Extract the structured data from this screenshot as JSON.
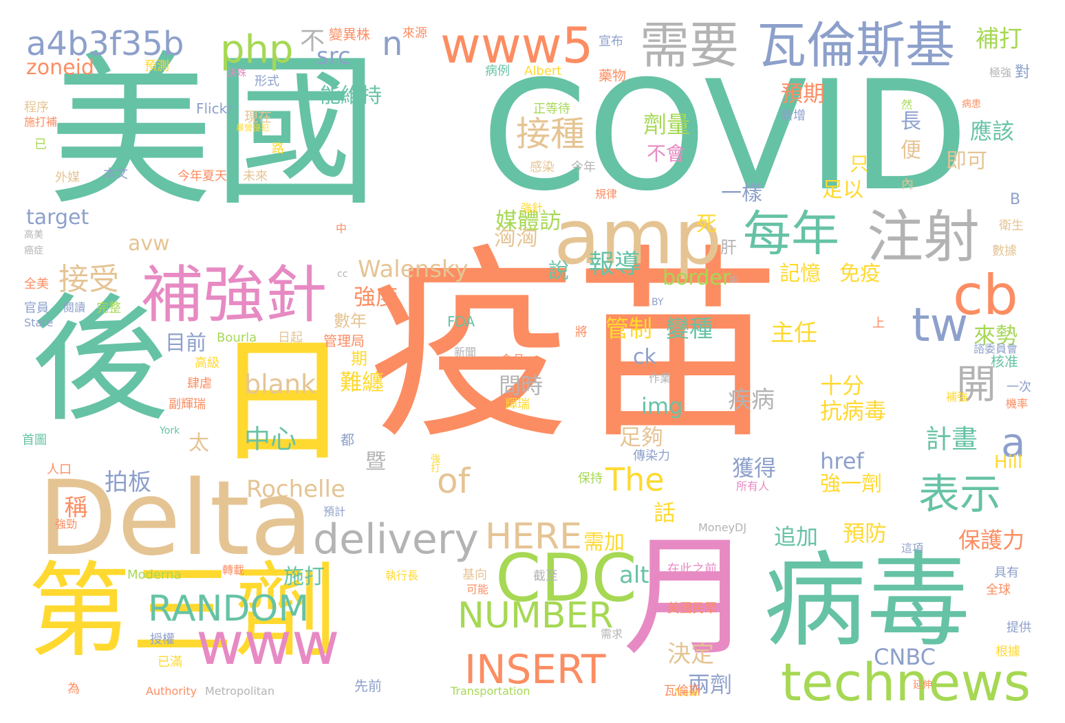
{
  "palette": {
    "teal": "#66c2a5",
    "orange": "#fc8d62",
    "blue": "#8da0cb",
    "pink": "#e78ac3",
    "green": "#a6d854",
    "yellow": "#ffd92f",
    "tan": "#e5c494",
    "gray": "#b3b3b3"
  },
  "words": [
    {
      "text": "美國",
      "color": "teal"
    },
    {
      "text": "COVID",
      "color": "teal"
    },
    {
      "text": "疫苗",
      "color": "orange"
    },
    {
      "text": "後",
      "color": "teal"
    },
    {
      "text": "日",
      "color": "yellow"
    },
    {
      "text": "Delta",
      "color": "tan"
    },
    {
      "text": "第三劑",
      "color": "yellow"
    },
    {
      "text": "月",
      "color": "pink"
    },
    {
      "text": "病毒",
      "color": "teal"
    },
    {
      "text": "補強針",
      "color": "pink"
    },
    {
      "text": "amp",
      "color": "tan"
    },
    {
      "text": "CDC",
      "color": "green"
    },
    {
      "text": "www",
      "color": "pink"
    },
    {
      "text": "需要",
      "color": "gray"
    },
    {
      "text": "瓦倫斯基",
      "color": "blue"
    },
    {
      "text": "www5",
      "color": "orange"
    },
    {
      "text": "php",
      "color": "green"
    },
    {
      "text": "a4b3f35b",
      "color": "blue"
    },
    {
      "text": "注射",
      "color": "gray"
    },
    {
      "text": "每年",
      "color": "teal"
    },
    {
      "text": "cb",
      "color": "orange"
    },
    {
      "text": "technews",
      "color": "green"
    },
    {
      "text": "delivery",
      "color": "gray"
    },
    {
      "text": "RANDOM",
      "color": "teal"
    },
    {
      "text": "NUMBER",
      "color": "green"
    },
    {
      "text": "INSERT",
      "color": "orange"
    },
    {
      "text": "表示",
      "color": "teal"
    },
    {
      "text": "開",
      "color": "gray"
    },
    {
      "text": "tw",
      "color": "blue"
    },
    {
      "text": "a",
      "color": "blue"
    },
    {
      "text": "接種",
      "color": "tan"
    },
    {
      "text": "接受",
      "color": "tan"
    },
    {
      "text": "報導",
      "color": "teal"
    },
    {
      "text": "HERE",
      "color": "tan"
    },
    {
      "text": "The",
      "color": "yellow"
    },
    {
      "text": "of",
      "color": "tan"
    },
    {
      "text": "blank",
      "color": "tan"
    },
    {
      "text": "中心",
      "color": "teal"
    },
    {
      "text": "Rochelle",
      "color": "tan"
    },
    {
      "text": "Walensky",
      "color": "tan"
    },
    {
      "text": "n",
      "color": "blue"
    },
    {
      "text": "src",
      "color": "blue"
    },
    {
      "text": "不",
      "color": "gray"
    },
    {
      "text": "補打",
      "color": "green"
    },
    {
      "text": "能維持",
      "color": "teal"
    },
    {
      "text": "預期",
      "color": "orange"
    },
    {
      "text": "劑量",
      "color": "green"
    },
    {
      "text": "不會",
      "color": "pink"
    },
    {
      "text": "應該",
      "color": "teal"
    },
    {
      "text": "即可",
      "color": "tan"
    },
    {
      "text": "只",
      "color": "yellow"
    },
    {
      "text": "足以",
      "color": "yellow"
    },
    {
      "text": "一樣",
      "color": "blue"
    },
    {
      "text": "長",
      "color": "blue"
    },
    {
      "text": "便",
      "color": "tan"
    },
    {
      "text": "媒體訪",
      "color": "green"
    },
    {
      "text": "洶洶",
      "color": "tan"
    },
    {
      "text": "border",
      "color": "green"
    },
    {
      "text": "主任",
      "color": "yellow"
    },
    {
      "text": "來勢",
      "color": "green"
    },
    {
      "text": "管制",
      "color": "yellow"
    },
    {
      "text": "變種",
      "color": "teal"
    },
    {
      "text": "ck",
      "color": "blue"
    },
    {
      "text": "img",
      "color": "teal"
    },
    {
      "text": "問時",
      "color": "gray"
    },
    {
      "text": "足夠",
      "color": "tan"
    },
    {
      "text": "計畫",
      "color": "teal"
    },
    {
      "text": "十分",
      "color": "yellow"
    },
    {
      "text": "抗病毒",
      "color": "yellow"
    },
    {
      "text": "疾病",
      "color": "gray"
    },
    {
      "text": "獲得",
      "color": "blue"
    },
    {
      "text": "href",
      "color": "blue"
    },
    {
      "text": "強一劑",
      "color": "yellow"
    },
    {
      "text": "追加",
      "color": "teal"
    },
    {
      "text": "預防",
      "color": "yellow"
    },
    {
      "text": "保護力",
      "color": "orange"
    },
    {
      "text": "決定",
      "color": "tan"
    },
    {
      "text": "兩劑",
      "color": "blue"
    },
    {
      "text": "CNBC",
      "color": "blue"
    },
    {
      "text": "施打",
      "color": "teal"
    },
    {
      "text": "難纏",
      "color": "yellow"
    },
    {
      "text": "強度",
      "color": "orange"
    },
    {
      "text": "拍板",
      "color": "blue"
    },
    {
      "text": "目前",
      "color": "blue"
    },
    {
      "text": "target",
      "color": "blue"
    },
    {
      "text": "avw",
      "color": "tan"
    },
    {
      "text": "zoneid",
      "color": "orange"
    },
    {
      "text": "alt",
      "color": "teal"
    },
    {
      "text": "需加",
      "color": "yellow"
    },
    {
      "text": "稱",
      "color": "orange"
    },
    {
      "text": "話",
      "color": "yellow"
    },
    {
      "text": "記憶",
      "color": "yellow"
    },
    {
      "text": "免疫",
      "color": "yellow"
    },
    {
      "text": "死",
      "color": "yellow"
    },
    {
      "text": "肝",
      "color": "gray"
    },
    {
      "text": "說",
      "color": "teal"
    },
    {
      "text": "太",
      "color": "tan"
    },
    {
      "text": "暨",
      "color": "gray"
    },
    {
      "text": "期",
      "color": "yellow"
    },
    {
      "text": "數年",
      "color": "tan"
    },
    {
      "text": "管理局",
      "color": "orange"
    },
    {
      "text": "FDA",
      "color": "teal"
    },
    {
      "text": "Bourla",
      "color": "green"
    },
    {
      "text": "日起",
      "color": "tan"
    },
    {
      "text": "高級",
      "color": "yellow"
    },
    {
      "text": "肆虐",
      "color": "orange"
    },
    {
      "text": "副輝瑞",
      "color": "orange"
    },
    {
      "text": "官員",
      "color": "blue"
    },
    {
      "text": "閱讀",
      "color": "blue"
    },
    {
      "text": "完整",
      "color": "green"
    },
    {
      "text": "全美",
      "color": "orange"
    },
    {
      "text": "State",
      "color": "blue"
    },
    {
      "text": "首圖",
      "color": "teal"
    },
    {
      "text": "人口",
      "color": "orange"
    },
    {
      "text": "York",
      "color": "teal"
    },
    {
      "text": "都",
      "color": "blue"
    },
    {
      "text": "作業",
      "color": "gray"
    },
    {
      "text": "食品",
      "color": "orange"
    },
    {
      "text": "輝瑞",
      "color": "yellow"
    },
    {
      "text": "新聞",
      "color": "gray"
    },
    {
      "text": "將",
      "color": "orange"
    },
    {
      "text": "上",
      "color": "orange"
    },
    {
      "text": "核准",
      "color": "teal"
    },
    {
      "text": "諮委員會",
      "color": "blue"
    },
    {
      "text": "一次",
      "color": "blue"
    },
    {
      "text": "補強",
      "color": "yellow"
    },
    {
      "text": "機率",
      "color": "orange"
    },
    {
      "text": "傳染力",
      "color": "blue"
    },
    {
      "text": "保持",
      "color": "green"
    },
    {
      "text": "強打",
      "color": "yellow"
    },
    {
      "text": "所有人",
      "color": "pink"
    },
    {
      "text": "預計",
      "color": "blue"
    },
    {
      "text": "強勁",
      "color": "orange"
    },
    {
      "text": "Hill",
      "color": "yellow"
    },
    {
      "text": "MoneyDJ",
      "color": "gray"
    },
    {
      "text": "這項",
      "color": "blue"
    },
    {
      "text": "在此之前",
      "color": "pink"
    },
    {
      "text": "美國民眾",
      "color": "orange"
    },
    {
      "text": "截至",
      "color": "gray"
    },
    {
      "text": "基向",
      "color": "tan"
    },
    {
      "text": "可能",
      "color": "orange"
    },
    {
      "text": "執行長",
      "color": "yellow"
    },
    {
      "text": "轉載",
      "color": "orange"
    },
    {
      "text": "Moderna",
      "color": "green"
    },
    {
      "text": "具有",
      "color": "blue"
    },
    {
      "text": "全球",
      "color": "orange"
    },
    {
      "text": "提供",
      "color": "blue"
    },
    {
      "text": "根據",
      "color": "yellow"
    },
    {
      "text": "延伸",
      "color": "orange"
    },
    {
      "text": "New",
      "color": "yellow"
    },
    {
      "text": "瓦倫斯",
      "color": "orange"
    },
    {
      "text": "Transportation",
      "color": "green"
    },
    {
      "text": "先前",
      "color": "blue"
    },
    {
      "text": "Metropolitan",
      "color": "gray"
    },
    {
      "text": "Authority",
      "color": "orange"
    },
    {
      "text": "已滿",
      "color": "yellow"
    },
    {
      "text": "授權",
      "color": "blue"
    },
    {
      "text": "為",
      "color": "orange"
    },
    {
      "text": "需求",
      "color": "gray"
    },
    {
      "text": "變異株",
      "color": "orange"
    },
    {
      "text": "來源",
      "color": "orange"
    },
    {
      "text": "宣布",
      "color": "blue"
    },
    {
      "text": "病例",
      "color": "teal"
    },
    {
      "text": "藥物",
      "color": "orange"
    },
    {
      "text": "Albert",
      "color": "yellow"
    },
    {
      "text": "預測",
      "color": "yellow"
    },
    {
      "text": "決殊",
      "color": "pink"
    },
    {
      "text": "形式",
      "color": "blue"
    },
    {
      "text": "程序",
      "color": "tan"
    },
    {
      "text": "施打補",
      "color": "orange"
    },
    {
      "text": "Flickr",
      "color": "blue"
    },
    {
      "text": "現在",
      "color": "tan"
    },
    {
      "text": "已",
      "color": "green"
    },
    {
      "text": "暴營侵犯",
      "color": "yellow"
    },
    {
      "text": "路",
      "color": "yellow"
    },
    {
      "text": "外媒",
      "color": "tan"
    },
    {
      "text": "本文",
      "color": "blue"
    },
    {
      "text": "今年夏天",
      "color": "orange"
    },
    {
      "text": "未來",
      "color": "tan"
    },
    {
      "text": "正等待",
      "color": "green"
    },
    {
      "text": "新增",
      "color": "blue"
    },
    {
      "text": "感染",
      "color": "tan"
    },
    {
      "text": "今年",
      "color": "gray"
    },
    {
      "text": "規律",
      "color": "orange"
    },
    {
      "text": "強針",
      "color": "yellow"
    },
    {
      "text": "中",
      "color": "orange"
    },
    {
      "text": "然",
      "color": "green"
    },
    {
      "text": "病患",
      "color": "orange"
    },
    {
      "text": "極強",
      "color": "gray"
    },
    {
      "text": "對",
      "color": "blue"
    },
    {
      "text": "內",
      "color": "tan"
    },
    {
      "text": "B",
      "color": "blue"
    },
    {
      "text": "衛生",
      "color": "tan"
    },
    {
      "text": "數據",
      "color": "tan"
    },
    {
      "text": "高美",
      "color": "gray"
    },
    {
      "text": "癌症",
      "color": "gray"
    },
    {
      "text": "cc",
      "color": "gray"
    },
    {
      "text": "BY",
      "color": "blue"
    },
    {
      "text": "遜",
      "color": "gray"
    }
  ]
}
